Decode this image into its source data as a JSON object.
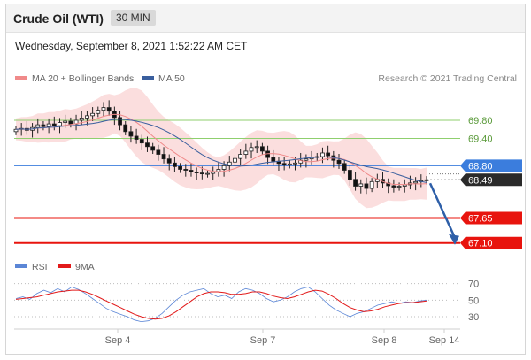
{
  "header": {
    "title": "Crude Oil (WTI)",
    "timeframe": "30 MIN"
  },
  "timestamp": "Wednesday, September 8, 2021 1:52:22 AM CET",
  "legend": {
    "ma20": "MA 20 + Bollinger Bands",
    "ma50": "MA 50"
  },
  "copyright": "Research © 2021 Trading Central",
  "rsi_legend": {
    "rsi": "RSI",
    "ma9": "9MA"
  },
  "colors": {
    "ma20": "#f08a8a",
    "ma50": "#3a5f9e",
    "band": "#fbdada",
    "up": "#ffffff",
    "down": "#111111",
    "green_level": "#8fcf6e",
    "blue_level": "#3b7ddd",
    "red_level": "#e8140e",
    "arrow": "#2e5fa8",
    "rsi": "#5b86d6",
    "rsi_ma": "#e21a1a"
  },
  "chart_data": [
    {
      "type": "candlestick",
      "title": "Crude Oil (WTI)",
      "timeframe": "30 MIN",
      "x_ticks": [
        "Sep 4",
        "Sep 7",
        "Sep 8",
        "Sep 14"
      ],
      "y_range": [
        66.9,
        70.5
      ],
      "closes": [
        69.6,
        69.62,
        69.58,
        69.64,
        69.7,
        69.66,
        69.72,
        69.68,
        69.75,
        69.78,
        69.72,
        69.8,
        69.85,
        69.9,
        69.95,
        70.02,
        70.08,
        70.0,
        69.86,
        69.7,
        69.55,
        69.45,
        69.38,
        69.3,
        69.22,
        69.14,
        69.05,
        68.95,
        68.86,
        68.78,
        68.72,
        68.7,
        68.66,
        68.64,
        68.62,
        68.63,
        68.66,
        68.72,
        68.8,
        68.88,
        68.96,
        69.05,
        69.12,
        69.2,
        69.22,
        69.12,
        68.98,
        68.9,
        68.85,
        68.82,
        68.84,
        68.86,
        68.92,
        68.95,
        68.98,
        69.0,
        69.08,
        69.02,
        68.92,
        68.85,
        68.7,
        68.5,
        68.35,
        68.4,
        68.3,
        68.45,
        68.5,
        68.42,
        68.36,
        68.33,
        68.35,
        68.38,
        68.42,
        68.45,
        68.47,
        68.49
      ],
      "levels": [
        {
          "value": 69.8,
          "label": "69.80",
          "color": "green"
        },
        {
          "value": 69.4,
          "label": "69.40",
          "color": "green"
        },
        {
          "value": 68.8,
          "label": "68.80",
          "color": "blue"
        },
        {
          "value": 68.49,
          "label": "68.49",
          "color": "last"
        },
        {
          "value": 67.65,
          "label": "67.65",
          "color": "red"
        },
        {
          "value": 67.1,
          "label": "67.10",
          "color": "red"
        }
      ],
      "last_price": 68.49,
      "forecast_target": 67.1
    },
    {
      "type": "line",
      "title": "RSI",
      "series": [
        {
          "name": "RSI",
          "values": [
            52,
            54,
            51,
            58,
            62,
            59,
            64,
            60,
            66,
            63,
            58,
            52,
            46,
            40,
            36,
            33,
            30,
            26,
            24,
            25,
            28,
            34,
            42,
            50,
            56,
            60,
            62,
            64,
            58,
            54,
            56,
            52,
            60,
            64,
            62,
            58,
            52,
            48,
            50,
            54,
            60,
            64,
            66,
            60,
            52,
            44,
            38,
            34,
            30,
            34,
            36,
            40,
            44,
            46,
            48,
            46,
            48,
            47,
            49,
            50
          ]
        },
        {
          "name": "9MA",
          "values": [
            51,
            52,
            53,
            54,
            56,
            58,
            60,
            61,
            62,
            62,
            60,
            57,
            53,
            49,
            45,
            41,
            37,
            33,
            30,
            28,
            27,
            28,
            31,
            36,
            42,
            48,
            54,
            58,
            60,
            60,
            59,
            57,
            57,
            58,
            60,
            60,
            58,
            55,
            53,
            52,
            54,
            57,
            60,
            62,
            61,
            57,
            52,
            46,
            41,
            38,
            36,
            37,
            39,
            42,
            44,
            46,
            47,
            47,
            48,
            49
          ]
        }
      ],
      "levels": [
        70,
        50,
        30
      ],
      "y_range": [
        15,
        75
      ]
    }
  ]
}
